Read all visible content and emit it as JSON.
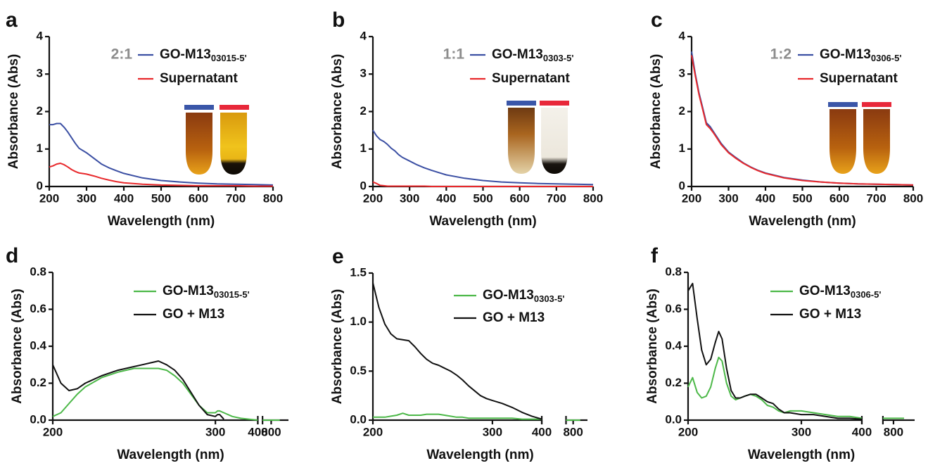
{
  "chart_data": [
    {
      "type": "line",
      "panel_label": "a",
      "ratio": "2:1",
      "x_label": "Wavelength (nm)",
      "y_label": "Absorbance (Abs)",
      "xlim": [
        200,
        800
      ],
      "xticks": [
        200,
        300,
        400,
        500,
        600,
        700,
        800
      ],
      "ylim": [
        0,
        4
      ],
      "yticks": [
        0,
        1,
        2,
        3,
        4
      ],
      "x": [
        200,
        210,
        220,
        230,
        240,
        250,
        260,
        270,
        280,
        300,
        320,
        340,
        360,
        380,
        400,
        450,
        500,
        550,
        600,
        650,
        700,
        750,
        800
      ],
      "series": [
        {
          "name": "GO-M13",
          "name_sub": "03015-5'",
          "color": "#3b4fa3",
          "values": [
            1.65,
            1.65,
            1.68,
            1.68,
            1.58,
            1.45,
            1.3,
            1.15,
            1.02,
            0.9,
            0.75,
            0.6,
            0.5,
            0.42,
            0.35,
            0.23,
            0.16,
            0.12,
            0.09,
            0.07,
            0.06,
            0.05,
            0.04
          ]
        },
        {
          "name": "Supernatant",
          "color": "#e8282b",
          "values": [
            0.52,
            0.55,
            0.6,
            0.62,
            0.58,
            0.52,
            0.45,
            0.4,
            0.36,
            0.33,
            0.28,
            0.22,
            0.17,
            0.13,
            0.1,
            0.06,
            0.04,
            0.03,
            0.02,
            0.02,
            0.02,
            0.01,
            0.01
          ]
        }
      ]
    },
    {
      "type": "line",
      "panel_label": "b",
      "ratio": "1:1",
      "x_label": "Wavelength (nm)",
      "y_label": "Absorbance (Abs)",
      "xlim": [
        200,
        800
      ],
      "xticks": [
        200,
        300,
        400,
        500,
        600,
        700,
        800
      ],
      "ylim": [
        0,
        4
      ],
      "yticks": [
        0,
        1,
        2,
        3,
        4
      ],
      "x": [
        200,
        210,
        220,
        230,
        240,
        250,
        260,
        270,
        280,
        300,
        320,
        340,
        360,
        380,
        400,
        450,
        500,
        550,
        600,
        650,
        700,
        750,
        800
      ],
      "series": [
        {
          "name": "GO-M13",
          "name_sub": "0303-5'",
          "color": "#3b4fa3",
          "values": [
            1.5,
            1.35,
            1.25,
            1.2,
            1.12,
            1.02,
            0.95,
            0.85,
            0.78,
            0.68,
            0.58,
            0.5,
            0.43,
            0.37,
            0.31,
            0.22,
            0.16,
            0.12,
            0.1,
            0.08,
            0.07,
            0.06,
            0.05
          ]
        },
        {
          "name": "Supernatant",
          "color": "#e8282b",
          "values": [
            0.12,
            0.08,
            0.03,
            0.02,
            0.01,
            0.01,
            0.01,
            0.01,
            0.01,
            0.01,
            0.01,
            0.01,
            0,
            0,
            0,
            0,
            0,
            0,
            0,
            0,
            0,
            0,
            0
          ]
        }
      ]
    },
    {
      "type": "line",
      "panel_label": "c",
      "ratio": "1:2",
      "x_label": "Wavelength (nm)",
      "y_label": "Absorbance (Abs)",
      "xlim": [
        200,
        800
      ],
      "xticks": [
        200,
        300,
        400,
        500,
        600,
        700,
        800
      ],
      "ylim": [
        0,
        4
      ],
      "yticks": [
        0,
        1,
        2,
        3,
        4
      ],
      "x": [
        200,
        210,
        220,
        230,
        240,
        250,
        260,
        270,
        280,
        300,
        320,
        340,
        360,
        380,
        400,
        450,
        500,
        550,
        600,
        650,
        700,
        750,
        800
      ],
      "series": [
        {
          "name": "GO-M13",
          "name_sub": "0306-5'",
          "color": "#3b4fa3",
          "values": [
            3.6,
            3.0,
            2.5,
            2.1,
            1.7,
            1.6,
            1.45,
            1.3,
            1.15,
            0.92,
            0.77,
            0.63,
            0.52,
            0.43,
            0.36,
            0.24,
            0.17,
            0.12,
            0.09,
            0.07,
            0.06,
            0.05,
            0.04
          ]
        },
        {
          "name": "Supernatant",
          "color": "#e8282b",
          "values": [
            3.5,
            2.95,
            2.45,
            2.05,
            1.65,
            1.55,
            1.42,
            1.27,
            1.12,
            0.9,
            0.75,
            0.62,
            0.51,
            0.42,
            0.35,
            0.23,
            0.16,
            0.12,
            0.09,
            0.07,
            0.06,
            0.05,
            0.04
          ]
        }
      ]
    },
    {
      "type": "line",
      "panel_label": "d",
      "x_label": "Wavelength (nm)",
      "y_label": "Absorbance (Abs)",
      "x_segments": [
        [
          200,
          300
        ],
        [
          300,
          400
        ],
        [
          790,
          820
        ]
      ],
      "xticks": [
        200,
        300,
        400,
        800
      ],
      "ylim": [
        0,
        0.8
      ],
      "yticks": [
        {
          "value": 0,
          "label": "0.0"
        },
        0.2,
        0.4,
        0.6,
        0.8
      ],
      "x": [
        200,
        205,
        210,
        215,
        220,
        230,
        240,
        250,
        255,
        260,
        265,
        270,
        275,
        280,
        285,
        290,
        295,
        300,
        305,
        310,
        320,
        340,
        360,
        380,
        400,
        790,
        800,
        810
      ],
      "series": [
        {
          "name": "GO-M13",
          "name_sub": "03015-5'",
          "color": "#4cb848",
          "values": [
            0.02,
            0.04,
            0.09,
            0.14,
            0.18,
            0.23,
            0.26,
            0.28,
            0.28,
            0.28,
            0.28,
            0.27,
            0.24,
            0.2,
            0.14,
            0.08,
            0.04,
            0.04,
            0.05,
            0.05,
            0.04,
            0.02,
            0.01,
            0.005,
            0,
            0,
            0,
            0
          ]
        },
        {
          "name": "GO + M13",
          "color": "#111111",
          "values": [
            0.3,
            0.2,
            0.16,
            0.17,
            0.2,
            0.24,
            0.27,
            0.29,
            0.3,
            0.31,
            0.32,
            0.3,
            0.27,
            0.22,
            0.15,
            0.08,
            0.03,
            0.02,
            0.03,
            0.03,
            0.005,
            null,
            null,
            null,
            null,
            null,
            null,
            null
          ]
        }
      ]
    },
    {
      "type": "line",
      "panel_label": "e",
      "x_label": "Wavelength (nm)",
      "y_label": "Absorbance (Abs)",
      "x_segments": [
        [
          200,
          300
        ],
        [
          300,
          400
        ],
        [
          790,
          820
        ]
      ],
      "xticks": [
        200,
        300,
        400,
        800
      ],
      "ylim": [
        0,
        1.5
      ],
      "yticks": [
        {
          "value": 0,
          "label": "0.0"
        },
        0.5,
        {
          "value": 1,
          "label": "1.0"
        },
        1.5
      ],
      "x": [
        200,
        205,
        210,
        215,
        220,
        225,
        230,
        235,
        240,
        245,
        250,
        255,
        260,
        265,
        270,
        275,
        280,
        285,
        290,
        295,
        300,
        320,
        340,
        360,
        380,
        400,
        790,
        800,
        810
      ],
      "series": [
        {
          "name": "GO-M13",
          "name_sub": "0303-5'",
          "color": "#4cb848",
          "values": [
            0.03,
            0.03,
            0.03,
            0.04,
            0.05,
            0.07,
            0.05,
            0.05,
            0.05,
            0.06,
            0.06,
            0.06,
            0.05,
            0.04,
            0.03,
            0.03,
            0.02,
            0.02,
            0.02,
            0.02,
            0.02,
            0.02,
            0.02,
            0.01,
            0.01,
            0.01,
            0,
            0,
            0
          ]
        },
        {
          "name": "GO + M13",
          "color": "#111111",
          "values": [
            1.4,
            1.15,
            0.98,
            0.88,
            0.83,
            0.82,
            0.81,
            0.75,
            0.68,
            0.62,
            0.58,
            0.56,
            0.53,
            0.5,
            0.46,
            0.41,
            0.35,
            0.3,
            0.25,
            0.22,
            0.2,
            0.17,
            0.13,
            0.08,
            0.04,
            0.01,
            null,
            null,
            null
          ]
        }
      ]
    },
    {
      "type": "line",
      "panel_label": "f",
      "x_label": "Wavelength (nm)",
      "y_label": "Absorbance (Abs)",
      "x_segments": [
        [
          200,
          300
        ],
        [
          300,
          400
        ],
        [
          790,
          820
        ]
      ],
      "xticks": [
        200,
        300,
        400,
        800
      ],
      "ylim": [
        0,
        0.8
      ],
      "yticks": [
        {
          "value": 0,
          "label": "0.0"
        },
        0.2,
        0.4,
        0.6,
        0.8
      ],
      "x": [
        200,
        204,
        208,
        212,
        216,
        220,
        224,
        227,
        230,
        234,
        238,
        242,
        246,
        250,
        255,
        260,
        265,
        270,
        275,
        280,
        285,
        290,
        300,
        320,
        340,
        360,
        380,
        400,
        790,
        800,
        810
      ],
      "series": [
        {
          "name": "GO-M13",
          "name_sub": "0306-5'",
          "color": "#4cb848",
          "values": [
            0.18,
            0.23,
            0.15,
            0.12,
            0.13,
            0.18,
            0.28,
            0.34,
            0.32,
            0.2,
            0.13,
            0.11,
            0.12,
            0.13,
            0.14,
            0.13,
            0.11,
            0.08,
            0.07,
            0.05,
            0.04,
            0.05,
            0.05,
            0.04,
            0.03,
            0.02,
            0.02,
            0.01,
            0.01,
            0.01,
            0.01
          ]
        },
        {
          "name": "GO + M13",
          "color": "#111111",
          "values": [
            0.7,
            0.74,
            0.55,
            0.38,
            0.3,
            0.33,
            0.42,
            0.48,
            0.44,
            0.28,
            0.16,
            0.12,
            0.12,
            0.13,
            0.14,
            0.14,
            0.12,
            0.1,
            0.09,
            0.06,
            0.04,
            0.04,
            0.03,
            0.03,
            0.02,
            0.01,
            0.01,
            0.005,
            null,
            null,
            null
          ]
        }
      ]
    }
  ]
}
